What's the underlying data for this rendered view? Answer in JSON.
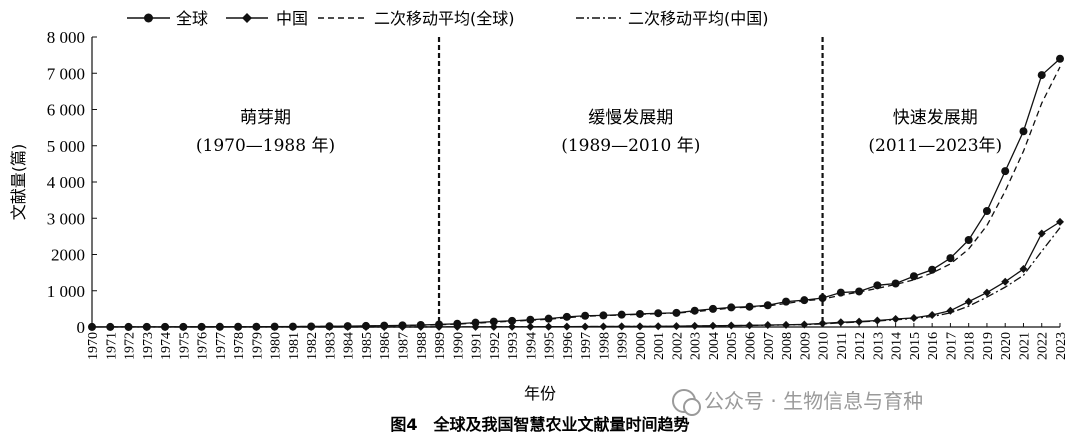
{
  "chart_data": {
    "type": "line",
    "title": "",
    "xlabel": "年份",
    "ylabel": "文献量(篇)",
    "ylim": [
      0,
      8000
    ],
    "yticks": [
      0,
      1000,
      2000,
      3000,
      4000,
      5000,
      6000,
      7000,
      8000
    ],
    "ytick_labels": [
      "0",
      "1 000",
      "2000",
      "3 000",
      "4 000",
      "5 000",
      "6 000",
      "7 000",
      "8 000"
    ],
    "x": [
      "1970",
      "1971",
      "1972",
      "1973",
      "1974",
      "1975",
      "1976",
      "1977",
      "1978",
      "1979",
      "1980",
      "1981",
      "1982",
      "1983",
      "1984",
      "1985",
      "1986",
      "1987",
      "1988",
      "1989",
      "1990",
      "1991",
      "1992",
      "1993",
      "1994",
      "1995",
      "1996",
      "1997",
      "1998",
      "1999",
      "2000",
      "2001",
      "2002",
      "2003",
      "2004",
      "2005",
      "2006",
      "2007",
      "2008",
      "2009",
      "2010",
      "2011",
      "2012",
      "2013",
      "2014",
      "2015",
      "2016",
      "2017",
      "2018",
      "2019",
      "2020",
      "2021",
      "2022",
      "2023"
    ],
    "series": [
      {
        "name": "全球",
        "marker": "circle",
        "values": [
          2,
          3,
          3,
          4,
          4,
          5,
          5,
          6,
          7,
          8,
          10,
          12,
          15,
          20,
          25,
          30,
          38,
          45,
          55,
          70,
          90,
          120,
          150,
          170,
          200,
          230,
          280,
          310,
          320,
          340,
          360,
          380,
          390,
          450,
          500,
          540,
          560,
          600,
          700,
          740,
          800,
          950,
          980,
          1150,
          1200,
          1400,
          1580,
          1900,
          2400,
          3200,
          4300,
          5400,
          6950,
          7400
        ]
      },
      {
        "name": "中国",
        "marker": "diamond",
        "values": [
          0,
          0,
          0,
          0,
          0,
          0,
          0,
          0,
          0,
          0,
          0,
          0,
          0,
          0,
          1,
          1,
          1,
          2,
          2,
          3,
          3,
          4,
          5,
          6,
          7,
          8,
          10,
          12,
          14,
          16,
          18,
          20,
          25,
          30,
          35,
          40,
          45,
          55,
          60,
          70,
          100,
          130,
          150,
          180,
          220,
          250,
          330,
          450,
          700,
          950,
          1250,
          1600,
          2580,
          2900
        ]
      },
      {
        "name": "二次移动平均(全球)",
        "style": "dashed",
        "values": [
          null,
          2.5,
          3,
          3.5,
          4,
          4.5,
          5,
          5.5,
          6.5,
          7.5,
          9,
          11,
          13.5,
          17.5,
          22.5,
          27.5,
          34,
          41.5,
          50,
          62.5,
          80,
          105,
          135,
          160,
          185,
          215,
          255,
          295,
          315,
          330,
          350,
          370,
          385,
          420,
          475,
          520,
          550,
          580,
          650,
          720,
          770,
          875,
          965,
          1065,
          1175,
          1300,
          1490,
          1740,
          2150,
          2800,
          3750,
          4850,
          6175,
          7175
        ]
      },
      {
        "name": "二次移动平均(中国)",
        "style": "dashdot",
        "values": [
          null,
          0,
          0,
          0,
          0,
          0,
          0,
          0,
          0,
          0,
          0,
          0,
          0,
          0,
          0.5,
          1,
          1,
          1.5,
          2,
          2.5,
          3,
          3.5,
          4.5,
          5.5,
          6.5,
          7.5,
          9,
          11,
          13,
          15,
          17,
          19,
          22.5,
          27.5,
          32.5,
          37.5,
          42.5,
          50,
          57.5,
          65,
          85,
          115,
          140,
          165,
          200,
          235,
          290,
          390,
          575,
          825,
          1100,
          1425,
          2090,
          2740
        ]
      }
    ],
    "vlines": [
      "1989",
      "2010"
    ],
    "phases": [
      {
        "name": "萌芽期",
        "range": "(1970—1988 年)"
      },
      {
        "name": "缓慢发展期",
        "range": "(1989—2010 年)"
      },
      {
        "name": "快速发展期",
        "range": "(2011—2023年)"
      }
    ],
    "legend": "top-left"
  },
  "caption": "图4　全球及我国智慧农业文献量时间趋势",
  "watermark": "公众号 · 生物信息与育种"
}
